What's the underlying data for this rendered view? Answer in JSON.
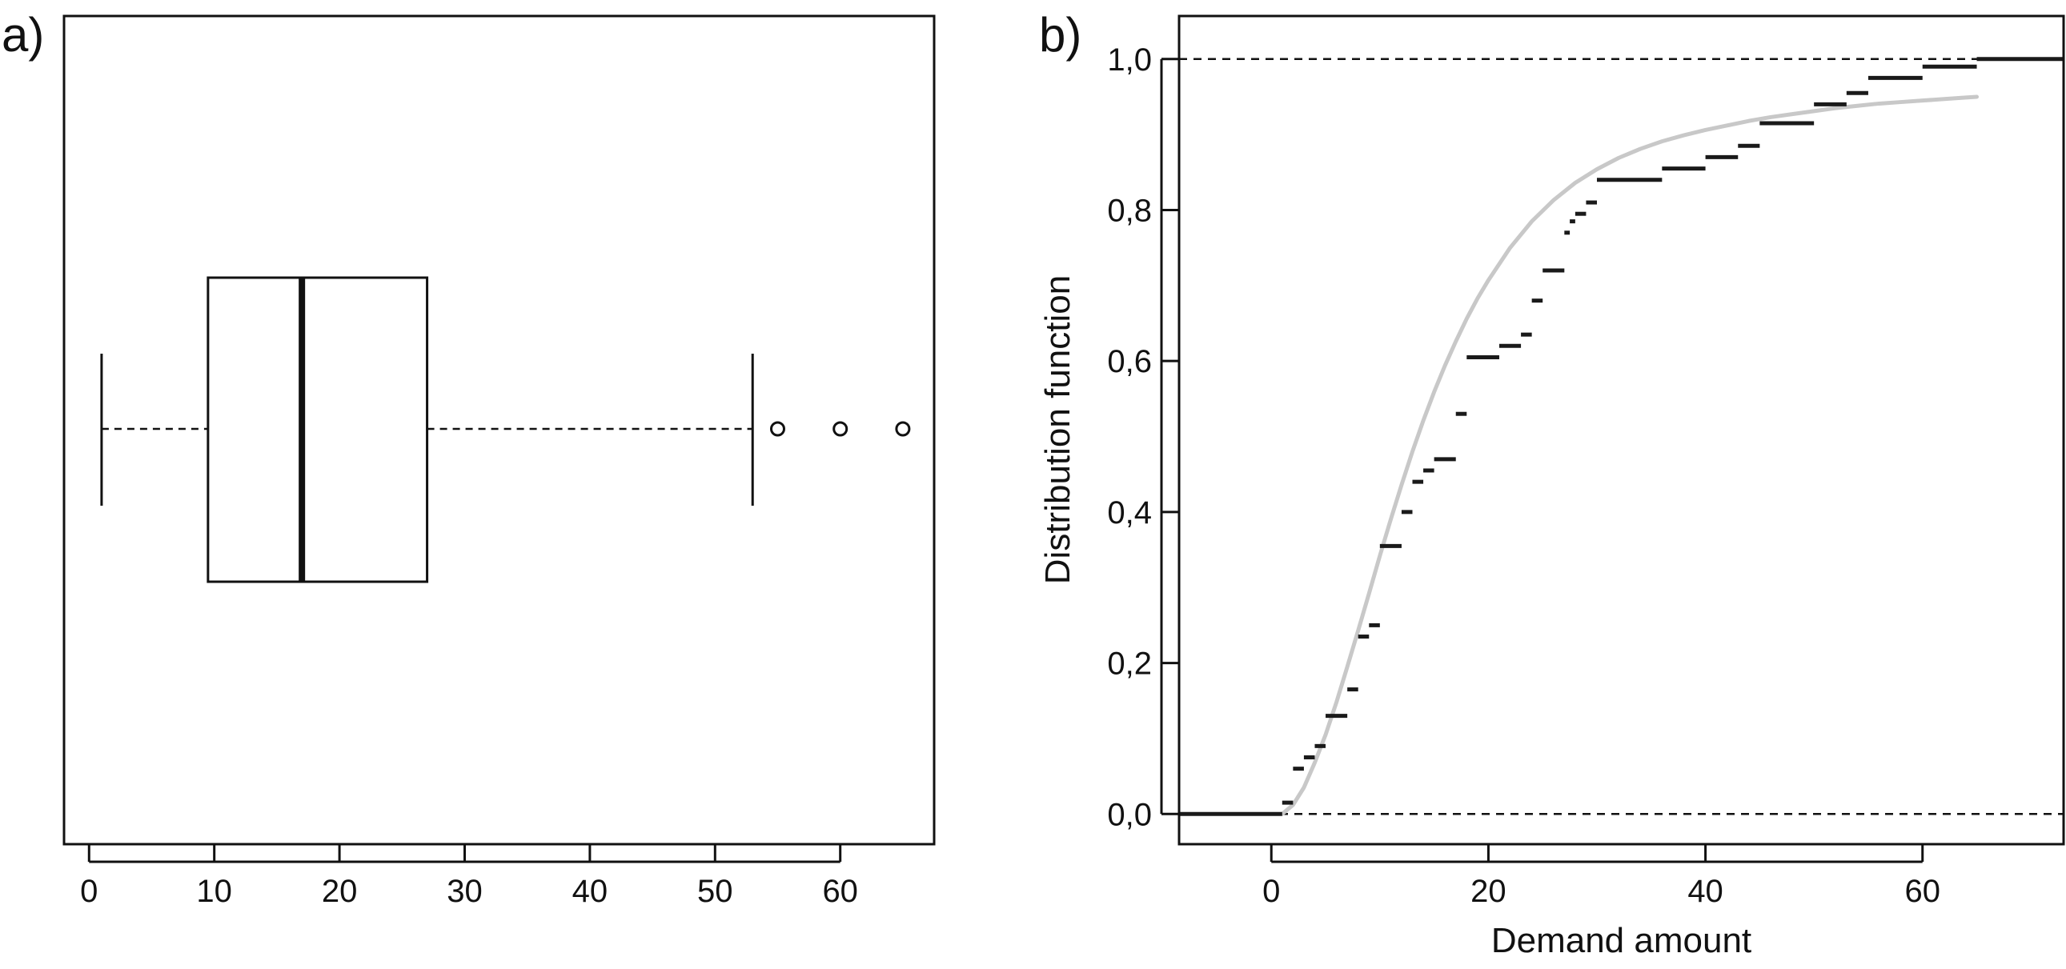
{
  "panels": {
    "a_label": "a)",
    "b_label": "b)"
  },
  "chart_data": [
    {
      "type": "box",
      "panel": "a)",
      "title": "",
      "xlabel": "",
      "ylabel": "",
      "orientation": "horizontal",
      "xlim": [
        -2,
        67.5
      ],
      "x_ticks": [
        0,
        10,
        20,
        30,
        40,
        50,
        60
      ],
      "x_tick_labels": [
        "0",
        "10",
        "20",
        "30",
        "40",
        "50",
        "60"
      ],
      "box": {
        "whisker_low": 1,
        "q1": 9.5,
        "median": 17,
        "q3": 27,
        "whisker_high": 53
      },
      "outliers": [
        55,
        60,
        65
      ],
      "grid": false
    },
    {
      "type": "line",
      "panel": "b)",
      "title": "",
      "xlabel": "Demand amount",
      "ylabel": "Distribution function",
      "xlim": [
        -8.5,
        73
      ],
      "ylim": [
        -0.04,
        1.057
      ],
      "x_ticks": [
        0,
        20,
        40,
        60
      ],
      "x_tick_labels": [
        "0",
        "20",
        "40",
        "60"
      ],
      "y_ticks": [
        0,
        0.2,
        0.4,
        0.6,
        0.8,
        1.0
      ],
      "y_tick_labels": [
        "0,0",
        "0,2",
        "0,4",
        "0,6",
        "0,8",
        "1,0"
      ],
      "reference_lines_y": [
        0,
        1
      ],
      "grid": false,
      "series": [
        {
          "kind": "ecdf-steps",
          "color": "#1a1a1a",
          "steps": [
            {
              "x0": -8.5,
              "x1": 1,
              "y": 0.0
            },
            {
              "x0": 1,
              "x1": 2,
              "y": 0.015
            },
            {
              "x0": 2,
              "x1": 3,
              "y": 0.06
            },
            {
              "x0": 3,
              "x1": 4,
              "y": 0.075
            },
            {
              "x0": 4,
              "x1": 5,
              "y": 0.09
            },
            {
              "x0": 5,
              "x1": 7,
              "y": 0.13
            },
            {
              "x0": 7,
              "x1": 8,
              "y": 0.165
            },
            {
              "x0": 8,
              "x1": 9,
              "y": 0.235
            },
            {
              "x0": 9,
              "x1": 10,
              "y": 0.25
            },
            {
              "x0": 10,
              "x1": 12,
              "y": 0.355
            },
            {
              "x0": 12,
              "x1": 13,
              "y": 0.4
            },
            {
              "x0": 13,
              "x1": 14,
              "y": 0.44
            },
            {
              "x0": 14,
              "x1": 15,
              "y": 0.455
            },
            {
              "x0": 15,
              "x1": 17,
              "y": 0.47
            },
            {
              "x0": 17,
              "x1": 18,
              "y": 0.53
            },
            {
              "x0": 18,
              "x1": 21,
              "y": 0.605
            },
            {
              "x0": 21,
              "x1": 23,
              "y": 0.62
            },
            {
              "x0": 23,
              "x1": 24,
              "y": 0.635
            },
            {
              "x0": 24,
              "x1": 25,
              "y": 0.68
            },
            {
              "x0": 25,
              "x1": 27,
              "y": 0.72
            },
            {
              "x0": 27,
              "x1": 27.5,
              "y": 0.77
            },
            {
              "x0": 27.5,
              "x1": 28,
              "y": 0.785
            },
            {
              "x0": 28,
              "x1": 29,
              "y": 0.795
            },
            {
              "x0": 29,
              "x1": 30,
              "y": 0.81
            },
            {
              "x0": 30,
              "x1": 36,
              "y": 0.84
            },
            {
              "x0": 36,
              "x1": 40,
              "y": 0.855
            },
            {
              "x0": 40,
              "x1": 43,
              "y": 0.87
            },
            {
              "x0": 43,
              "x1": 45,
              "y": 0.885
            },
            {
              "x0": 45,
              "x1": 50,
              "y": 0.915
            },
            {
              "x0": 50,
              "x1": 53,
              "y": 0.94
            },
            {
              "x0": 53,
              "x1": 55,
              "y": 0.955
            },
            {
              "x0": 55,
              "x1": 60,
              "y": 0.975
            },
            {
              "x0": 60,
              "x1": 65,
              "y": 0.99
            },
            {
              "x0": 65,
              "x1": 73,
              "y": 1.0
            }
          ]
        },
        {
          "kind": "fitted-cdf",
          "color": "#c8c8c8",
          "x": [
            1,
            2,
            3,
            4,
            5,
            6,
            7,
            8,
            9,
            10,
            11,
            12,
            13,
            14,
            15,
            16,
            17,
            18,
            19,
            20,
            22,
            24,
            26,
            28,
            30,
            32,
            34,
            36,
            38,
            40,
            42,
            44,
            46,
            48,
            50,
            52,
            54,
            56,
            58,
            60,
            62,
            64,
            65
          ],
          "y": [
            0.0,
            0.012,
            0.035,
            0.068,
            0.105,
            0.148,
            0.195,
            0.243,
            0.292,
            0.342,
            0.39,
            0.436,
            0.48,
            0.521,
            0.559,
            0.594,
            0.626,
            0.656,
            0.683,
            0.707,
            0.75,
            0.785,
            0.813,
            0.836,
            0.854,
            0.869,
            0.881,
            0.891,
            0.899,
            0.906,
            0.912,
            0.918,
            0.923,
            0.927,
            0.931,
            0.935,
            0.938,
            0.941,
            0.943,
            0.945,
            0.947,
            0.949,
            0.95
          ]
        }
      ]
    }
  ]
}
